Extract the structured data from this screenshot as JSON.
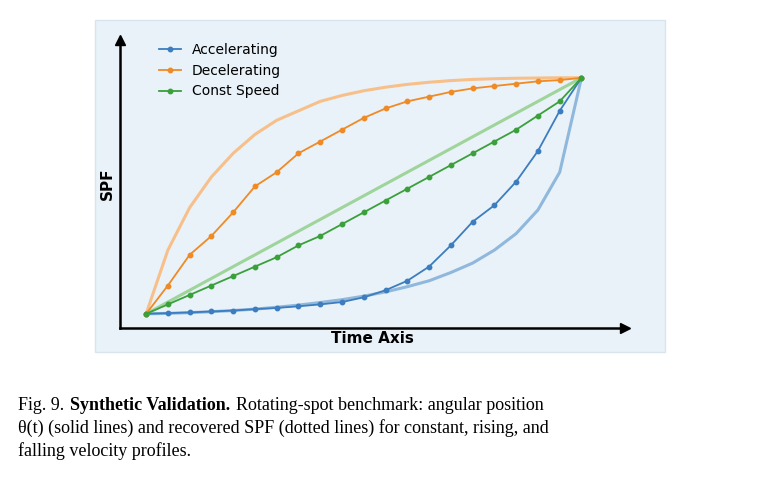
{
  "chart_data": {
    "type": "line",
    "xlabel": "Time Axis",
    "ylabel": "SPF",
    "x": [
      0,
      0.05,
      0.1,
      0.15,
      0.2,
      0.25,
      0.3,
      0.35,
      0.4,
      0.45,
      0.5,
      0.55,
      0.6,
      0.65,
      0.7,
      0.75,
      0.8,
      0.85,
      0.9,
      0.95,
      1.0
    ],
    "xlim": [
      -0.06,
      1.1
    ],
    "ylim": [
      -0.06,
      1.16
    ],
    "xticks": [],
    "yticks": [],
    "tick_labels": false,
    "grid": false,
    "legend": "upper left",
    "series": [
      {
        "color": "#8fb8dc",
        "line_style": "solid",
        "marker": "none",
        "values": [
          0,
          0.002,
          0.005,
          0.009,
          0.014,
          0.02,
          0.028,
          0.037,
          0.048,
          0.06,
          0.075,
          0.093,
          0.115,
          0.14,
          0.175,
          0.215,
          0.27,
          0.34,
          0.44,
          0.6,
          1.0
        ]
      },
      {
        "color": "#f7c08a",
        "line_style": "solid",
        "marker": "none",
        "values": [
          0,
          0.27,
          0.45,
          0.58,
          0.68,
          0.76,
          0.82,
          0.86,
          0.9,
          0.925,
          0.945,
          0.96,
          0.972,
          0.981,
          0.988,
          0.993,
          0.996,
          0.998,
          0.999,
          1.0,
          1.0
        ]
      },
      {
        "color": "#9fd49a",
        "line_style": "solid",
        "marker": "none",
        "values": [
          0,
          0.05,
          0.1,
          0.15,
          0.2,
          0.25,
          0.3,
          0.35,
          0.4,
          0.45,
          0.5,
          0.55,
          0.6,
          0.65,
          0.7,
          0.75,
          0.8,
          0.85,
          0.9,
          0.95,
          1.0
        ]
      },
      {
        "name": "Accelerating",
        "color": "#3b7dbf",
        "line_style": "solid",
        "marker": "o",
        "values": [
          0,
          0.003,
          0.006,
          0.01,
          0.014,
          0.02,
          0.025,
          0.032,
          0.04,
          0.05,
          0.07,
          0.1,
          0.14,
          0.2,
          0.29,
          0.39,
          0.46,
          0.56,
          0.69,
          0.86,
          1.0
        ]
      },
      {
        "name": "Decelerating",
        "color": "#f08a24",
        "line_style": "solid",
        "marker": "o",
        "values": [
          0,
          0.12,
          0.25,
          0.33,
          0.43,
          0.54,
          0.6,
          0.68,
          0.73,
          0.78,
          0.83,
          0.87,
          0.9,
          0.92,
          0.94,
          0.955,
          0.965,
          0.975,
          0.985,
          0.99,
          1.0
        ]
      },
      {
        "name": "Const Speed",
        "color": "#3aa03a",
        "line_style": "solid",
        "marker": "o",
        "values": [
          0,
          0.04,
          0.08,
          0.12,
          0.16,
          0.2,
          0.24,
          0.29,
          0.33,
          0.38,
          0.43,
          0.48,
          0.53,
          0.58,
          0.63,
          0.68,
          0.73,
          0.78,
          0.84,
          0.9,
          1.0
        ]
      }
    ]
  },
  "caption": {
    "label": "Fig. 9.",
    "title": "Synthetic Validation.",
    "lines": [
      "Rotating-spot benchmark: angular position",
      "θ(t) (solid lines) and recovered SPF (dotted lines) for constant, rising, and",
      "falling velocity profiles."
    ]
  }
}
